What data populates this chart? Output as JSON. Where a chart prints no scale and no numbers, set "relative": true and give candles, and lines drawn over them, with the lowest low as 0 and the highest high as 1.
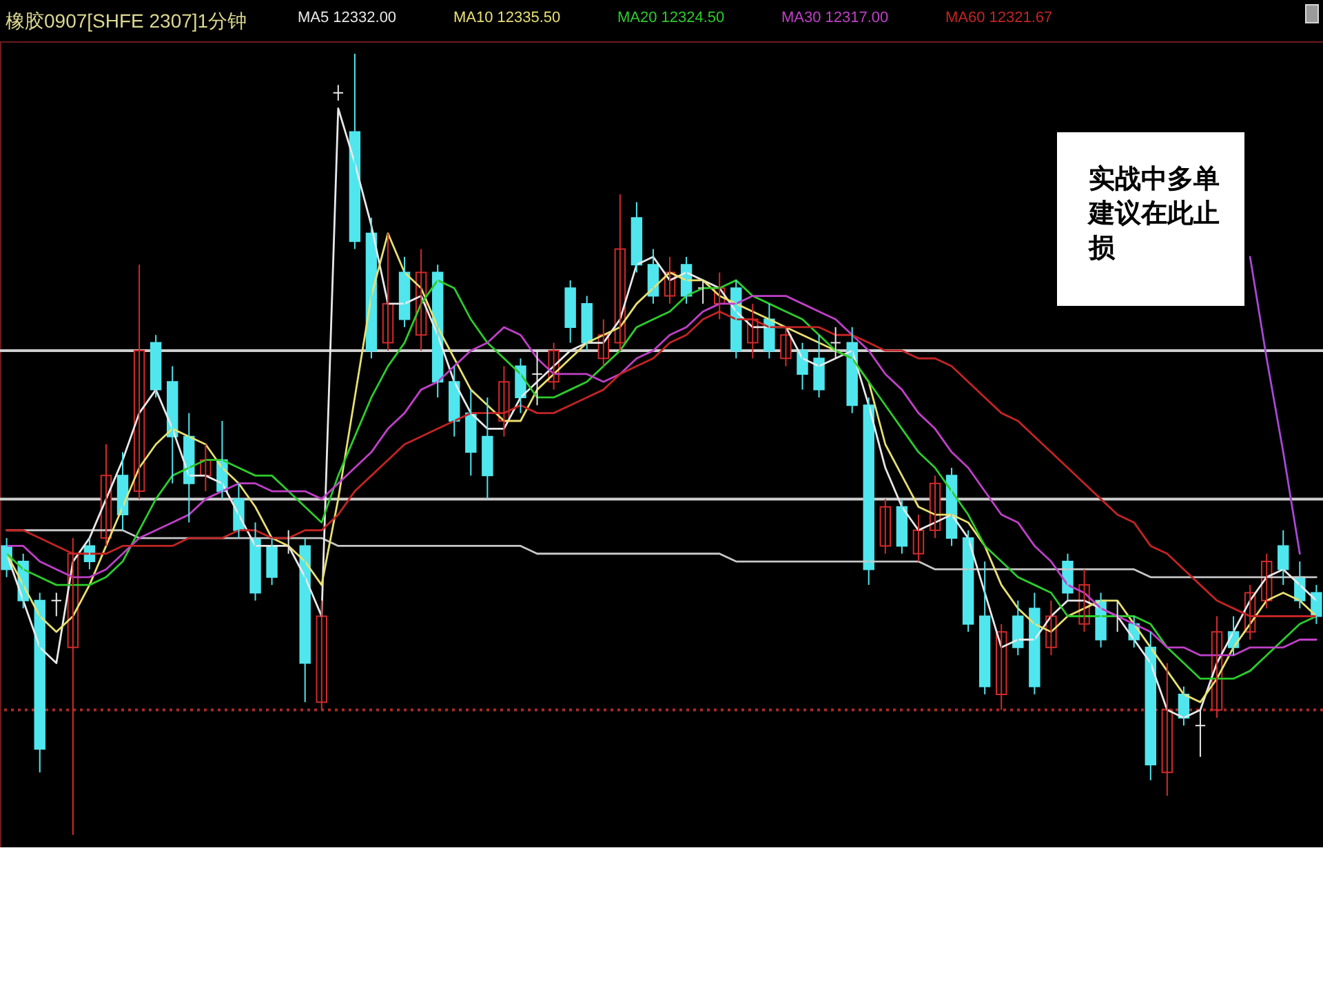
{
  "chart_data": {
    "type": "candlestick",
    "title": "橡胶0907[SHFE 2307]1分钟",
    "relative": true,
    "legend": "top",
    "categories": [
      null,
      null,
      null,
      null,
      null,
      null,
      null,
      null,
      null,
      null,
      null,
      null,
      null,
      null,
      null,
      null,
      null,
      null,
      null,
      null,
      null,
      null,
      null,
      null,
      null,
      null,
      null,
      null,
      null,
      null,
      null,
      null,
      null,
      null,
      null,
      null,
      null,
      null,
      null,
      null,
      null,
      null,
      null,
      null,
      null,
      null,
      null,
      null,
      null,
      null,
      null,
      null,
      null,
      null,
      null,
      null,
      null,
      null,
      null,
      null,
      null,
      null,
      null,
      null,
      null,
      null,
      null,
      null,
      null,
      null,
      null,
      null,
      null,
      null,
      null,
      null,
      null,
      null,
      null,
      null
    ],
    "ohlc": [
      [
        0.37,
        0.38,
        0.33,
        0.34
      ],
      [
        0.35,
        0.36,
        0.29,
        0.3
      ],
      [
        0.3,
        0.31,
        0.08,
        0.11
      ],
      [
        0.3,
        0.31,
        0.28,
        0.3
      ],
      [
        0.24,
        0.38,
        0,
        0.36
      ],
      [
        0.37,
        0.38,
        0.34,
        0.35
      ],
      [
        0.38,
        0.5,
        0.37,
        0.46
      ],
      [
        0.46,
        0.49,
        0.39,
        0.41
      ],
      [
        0.44,
        0.73,
        0.43,
        0.62
      ],
      [
        0.63,
        0.64,
        0.56,
        0.57
      ],
      [
        0.58,
        0.6,
        0.45,
        0.51
      ],
      [
        0.51,
        0.54,
        0.4,
        0.45
      ],
      [
        0.46,
        0.5,
        0.44,
        0.48
      ],
      [
        0.48,
        0.53,
        0.43,
        0.44
      ],
      [
        0.43,
        0.45,
        0.38,
        0.39
      ],
      [
        0.38,
        0.4,
        0.3,
        0.31
      ],
      [
        0.37,
        0.38,
        0.32,
        0.33
      ],
      [
        0.38,
        0.39,
        0.36,
        0.38
      ],
      [
        0.37,
        0.38,
        0.17,
        0.22
      ],
      [
        0.17,
        0.3,
        0.16,
        0.28
      ],
      [
        0.95,
        0.96,
        0.94,
        0.95
      ],
      [
        0.9,
        1,
        0.75,
        0.76
      ],
      [
        0.77,
        0.79,
        0.61,
        0.62
      ],
      [
        0.63,
        0.77,
        0.62,
        0.68
      ],
      [
        0.72,
        0.74,
        0.65,
        0.66
      ],
      [
        0.64,
        0.75,
        0.62,
        0.72
      ],
      [
        0.72,
        0.73,
        0.56,
        0.58
      ],
      [
        0.58,
        0.6,
        0.51,
        0.53
      ],
      [
        0.54,
        0.57,
        0.46,
        0.49
      ],
      [
        0.51,
        0.56,
        0.43,
        0.46
      ],
      [
        0.53,
        0.6,
        0.51,
        0.58
      ],
      [
        0.6,
        0.61,
        0.54,
        0.56
      ],
      [
        0.59,
        0.62,
        0.55,
        0.59
      ],
      [
        0.58,
        0.63,
        0.57,
        0.62
      ],
      [
        0.7,
        0.71,
        0.63,
        0.65
      ],
      [
        0.68,
        0.69,
        0.62,
        0.63
      ],
      [
        0.61,
        0.66,
        0.6,
        0.64
      ],
      [
        0.63,
        0.82,
        0.62,
        0.75
      ],
      [
        0.79,
        0.81,
        0.72,
        0.73
      ],
      [
        0.73,
        0.75,
        0.68,
        0.69
      ],
      [
        0.69,
        0.74,
        0.68,
        0.72
      ],
      [
        0.73,
        0.74,
        0.68,
        0.69
      ],
      [
        0.7,
        0.71,
        0.68,
        0.7
      ],
      [
        0.68,
        0.72,
        0.66,
        0.7
      ],
      [
        0.7,
        0.71,
        0.61,
        0.62
      ],
      [
        0.63,
        0.68,
        0.61,
        0.66
      ],
      [
        0.66,
        0.68,
        0.61,
        0.62
      ],
      [
        0.61,
        0.65,
        0.6,
        0.64
      ],
      [
        0.62,
        0.63,
        0.57,
        0.59
      ],
      [
        0.61,
        0.64,
        0.56,
        0.57
      ],
      [
        0.63,
        0.65,
        0.61,
        0.63
      ],
      [
        0.63,
        0.65,
        0.54,
        0.55
      ],
      [
        0.55,
        0.56,
        0.32,
        0.34
      ],
      [
        0.37,
        0.43,
        0.36,
        0.42
      ],
      [
        0.42,
        0.43,
        0.36,
        0.37
      ],
      [
        0.36,
        0.41,
        0.35,
        0.39
      ],
      [
        0.39,
        0.46,
        0.38,
        0.45
      ],
      [
        0.46,
        0.47,
        0.37,
        0.38
      ],
      [
        0.38,
        0.39,
        0.26,
        0.27
      ],
      [
        0.28,
        0.35,
        0.18,
        0.19
      ],
      [
        0.18,
        0.27,
        0.16,
        0.26
      ],
      [
        0.28,
        0.3,
        0.23,
        0.24
      ],
      [
        0.29,
        0.31,
        0.18,
        0.19
      ],
      [
        0.24,
        0.3,
        0.23,
        0.28
      ],
      [
        0.35,
        0.36,
        0.3,
        0.31
      ],
      [
        0.27,
        0.34,
        0.26,
        0.32
      ],
      [
        0.3,
        0.31,
        0.24,
        0.25
      ],
      [
        0.28,
        0.3,
        0.26,
        0.28
      ],
      [
        0.27,
        0.28,
        0.24,
        0.25
      ],
      [
        0.24,
        0.26,
        0.07,
        0.09
      ],
      [
        0.08,
        0.22,
        0.05,
        0.16
      ],
      [
        0.18,
        0.19,
        0.14,
        0.15
      ],
      [
        0.14,
        0.16,
        0.1,
        0.14
      ],
      [
        0.16,
        0.28,
        0.15,
        0.26
      ],
      [
        0.26,
        0.28,
        0.23,
        0.24
      ],
      [
        0.26,
        0.32,
        0.25,
        0.31
      ],
      [
        0.3,
        0.36,
        0.29,
        0.35
      ],
      [
        0.37,
        0.39,
        0.32,
        0.34
      ],
      [
        0.33,
        0.35,
        0.29,
        0.3
      ],
      [
        0.31,
        0.32,
        0.27,
        0.28
      ]
    ],
    "colors": [
      "#50e6ee",
      "#50e6ee",
      "#50e6ee",
      "#e8e8e8",
      "#d42a2a",
      "#50e6ee",
      "#d42a2a",
      "#50e6ee",
      "#d42a2a",
      "#50e6ee",
      "#50e6ee",
      "#50e6ee",
      "#d42a2a",
      "#50e6ee",
      "#50e6ee",
      "#50e6ee",
      "#50e6ee",
      "#e8e8e8",
      "#50e6ee",
      "#d42a2a",
      "#e8e8e8",
      "#50e6ee",
      "#50e6ee",
      "#d42a2a",
      "#50e6ee",
      "#d42a2a",
      "#50e6ee",
      "#50e6ee",
      "#50e6ee",
      "#50e6ee",
      "#d42a2a",
      "#50e6ee",
      "#e8e8e8",
      "#d42a2a",
      "#50e6ee",
      "#50e6ee",
      "#d42a2a",
      "#d42a2a",
      "#50e6ee",
      "#50e6ee",
      "#d42a2a",
      "#50e6ee",
      "#e8e8e8",
      "#d42a2a",
      "#50e6ee",
      "#d42a2a",
      "#50e6ee",
      "#d42a2a",
      "#50e6ee",
      "#50e6ee",
      "#e8e8e8",
      "#50e6ee",
      "#50e6ee",
      "#d42a2a",
      "#50e6ee",
      "#d42a2a",
      "#d42a2a",
      "#50e6ee",
      "#50e6ee",
      "#50e6ee",
      "#d42a2a",
      "#50e6ee",
      "#50e6ee",
      "#d42a2a",
      "#50e6ee",
      "#d42a2a",
      "#50e6ee",
      "#e8e8e8",
      "#50e6ee",
      "#50e6ee",
      "#d42a2a",
      "#50e6ee",
      "#e8e8e8",
      "#d42a2a",
      "#50e6ee",
      "#d42a2a",
      "#d42a2a",
      "#50e6ee",
      "#50e6ee",
      "#50e6ee"
    ],
    "series": [
      {
        "type": "line",
        "name": "MA5 12332.00",
        "color": "#e8e8e8",
        "values": [
          0.36,
          0.3,
          0.24,
          0.22,
          0.35,
          0.38,
          0.43,
          0.48,
          0.54,
          0.57,
          0.52,
          0.46,
          0.46,
          0.45,
          0.41,
          0.37,
          0.37,
          0.37,
          0.33,
          0.28,
          0.93,
          0.86,
          0.78,
          0.68,
          0.68,
          0.69,
          0.64,
          0.58,
          0.54,
          0.52,
          0.52,
          0.56,
          0.58,
          0.6,
          0.62,
          0.63,
          0.63,
          0.66,
          0.73,
          0.74,
          0.71,
          0.72,
          0.71,
          0.7,
          0.67,
          0.65,
          0.65,
          0.65,
          0.61,
          0.6,
          0.61,
          0.62,
          0.55,
          0.47,
          0.42,
          0.39,
          0.4,
          0.41,
          0.38,
          0.31,
          0.24,
          0.25,
          0.25,
          0.28,
          0.3,
          0.3,
          0.29,
          0.28,
          0.25,
          0.22,
          0.16,
          0.15,
          0.16,
          0.22,
          0.26,
          0.3,
          0.33,
          0.34,
          0.32,
          0.3
        ]
      },
      {
        "type": "line",
        "name": "MA10 12335.50",
        "color": "#e8e070",
        "values": [
          0.36,
          0.32,
          0.28,
          0.26,
          0.28,
          0.32,
          0.37,
          0.42,
          0.47,
          0.5,
          0.52,
          0.51,
          0.5,
          0.47,
          0.45,
          0.42,
          0.38,
          0.37,
          0.35,
          0.32,
          0.43,
          0.56,
          0.69,
          0.77,
          0.72,
          0.7,
          0.65,
          0.61,
          0.57,
          0.55,
          0.53,
          0.53,
          0.57,
          0.59,
          0.61,
          0.63,
          0.64,
          0.65,
          0.68,
          0.7,
          0.72,
          0.71,
          0.71,
          0.69,
          0.68,
          0.67,
          0.66,
          0.65,
          0.64,
          0.63,
          0.62,
          0.61,
          0.58,
          0.5,
          0.46,
          0.42,
          0.41,
          0.41,
          0.4,
          0.37,
          0.32,
          0.29,
          0.27,
          0.26,
          0.28,
          0.29,
          0.3,
          0.3,
          0.27,
          0.24,
          0.21,
          0.18,
          0.17,
          0.2,
          0.24,
          0.27,
          0.3,
          0.31,
          0.3,
          0.28
        ]
      },
      {
        "type": "line",
        "name": "MA20 12324.50",
        "color": "#2ccc2c",
        "values": [
          0.36,
          0.34,
          0.33,
          0.32,
          0.32,
          0.32,
          0.33,
          0.35,
          0.39,
          0.43,
          0.46,
          0.47,
          0.48,
          0.48,
          0.47,
          0.46,
          0.46,
          0.44,
          0.42,
          0.4,
          0.46,
          0.51,
          0.56,
          0.6,
          0.63,
          0.68,
          0.71,
          0.7,
          0.66,
          0.63,
          0.61,
          0.59,
          0.56,
          0.56,
          0.57,
          0.58,
          0.6,
          0.62,
          0.65,
          0.66,
          0.67,
          0.69,
          0.7,
          0.7,
          0.71,
          0.69,
          0.68,
          0.67,
          0.66,
          0.64,
          0.62,
          0.61,
          0.58,
          0.55,
          0.52,
          0.49,
          0.47,
          0.44,
          0.41,
          0.37,
          0.35,
          0.33,
          0.32,
          0.31,
          0.28,
          0.28,
          0.28,
          0.28,
          0.28,
          0.27,
          0.24,
          0.22,
          0.2,
          0.2,
          0.2,
          0.21,
          0.23,
          0.25,
          0.27,
          0.28
        ]
      },
      {
        "type": "line",
        "name": "MA30 12317.00",
        "color": "#c040c8",
        "values": [
          0.37,
          0.37,
          0.35,
          0.34,
          0.33,
          0.33,
          0.34,
          0.36,
          0.38,
          0.39,
          0.4,
          0.41,
          0.43,
          0.44,
          0.45,
          0.45,
          0.44,
          0.44,
          0.44,
          0.43,
          0.45,
          0.47,
          0.49,
          0.52,
          0.54,
          0.57,
          0.58,
          0.6,
          0.62,
          0.63,
          0.65,
          0.64,
          0.61,
          0.59,
          0.59,
          0.59,
          0.58,
          0.59,
          0.61,
          0.62,
          0.64,
          0.65,
          0.67,
          0.68,
          0.68,
          0.69,
          0.69,
          0.69,
          0.68,
          0.67,
          0.66,
          0.64,
          0.62,
          0.59,
          0.57,
          0.54,
          0.52,
          0.49,
          0.47,
          0.44,
          0.41,
          0.4,
          0.37,
          0.35,
          0.32,
          0.31,
          0.29,
          0.28,
          0.27,
          0.26,
          0.24,
          0.24,
          0.23,
          0.23,
          0.23,
          0.24,
          0.24,
          0.24,
          0.25,
          0.25
        ]
      },
      {
        "type": "line",
        "name": "MA60 12321.67",
        "color": "#c42424",
        "values": [
          0.39,
          0.39,
          0.38,
          0.37,
          0.36,
          0.36,
          0.36,
          0.37,
          0.37,
          0.37,
          0.37,
          0.38,
          0.38,
          0.38,
          0.39,
          0.39,
          0.38,
          0.38,
          0.39,
          0.39,
          0.41,
          0.44,
          0.46,
          0.48,
          0.5,
          0.51,
          0.52,
          0.53,
          0.54,
          0.54,
          0.54,
          0.55,
          0.54,
          0.54,
          0.55,
          0.56,
          0.57,
          0.59,
          0.6,
          0.61,
          0.63,
          0.64,
          0.66,
          0.67,
          0.66,
          0.66,
          0.65,
          0.65,
          0.65,
          0.65,
          0.64,
          0.64,
          0.63,
          0.62,
          0.62,
          0.61,
          0.61,
          0.6,
          0.58,
          0.56,
          0.54,
          0.53,
          0.51,
          0.49,
          0.47,
          0.45,
          0.43,
          0.41,
          0.4,
          0.37,
          0.36,
          0.34,
          0.32,
          0.3,
          0.29,
          0.28,
          0.28,
          0.28,
          0.28,
          0.28
        ]
      },
      {
        "type": "line",
        "color": "#c8c8c8",
        "values": [
          0.39,
          0.39,
          0.39,
          0.39,
          0.39,
          0.39,
          0.39,
          0.39,
          0.38,
          0.38,
          0.38,
          0.38,
          0.38,
          0.38,
          0.38,
          0.38,
          0.38,
          0.38,
          0.38,
          0.38,
          0.37,
          0.37,
          0.37,
          0.37,
          0.37,
          0.37,
          0.37,
          0.37,
          0.37,
          0.37,
          0.37,
          0.37,
          0.36,
          0.36,
          0.36,
          0.36,
          0.36,
          0.36,
          0.36,
          0.36,
          0.36,
          0.36,
          0.36,
          0.36,
          0.35,
          0.35,
          0.35,
          0.35,
          0.35,
          0.35,
          0.35,
          0.35,
          0.35,
          0.35,
          0.35,
          0.35,
          0.34,
          0.34,
          0.34,
          0.34,
          0.34,
          0.34,
          0.34,
          0.34,
          0.34,
          0.34,
          0.34,
          0.34,
          0.34,
          0.33,
          0.33,
          0.33,
          0.33,
          0.33,
          0.33,
          0.33,
          0.33,
          0.33,
          0.33,
          0.33
        ]
      },
      {
        "type": "line",
        "color": "#a848d8",
        "values": [
          null,
          null,
          null,
          null,
          null,
          null,
          null,
          null,
          null,
          null,
          null,
          null,
          null,
          null,
          null,
          null,
          null,
          null,
          null,
          null,
          null,
          null,
          null,
          null,
          null,
          null,
          null,
          null,
          null,
          null,
          null,
          null,
          null,
          null,
          null,
          null,
          null,
          null,
          null,
          null,
          null,
          null,
          null,
          null,
          null,
          null,
          null,
          null,
          null,
          null,
          null,
          null,
          null,
          null,
          null,
          null,
          null,
          null,
          null,
          null,
          null,
          null,
          null,
          null,
          null,
          null,
          null,
          null,
          null,
          null,
          null,
          null,
          null,
          null,
          null,
          0.74,
          0.61,
          0.49,
          0.36,
          null
        ]
      }
    ],
    "ref_lines": [
      {
        "axis": "y",
        "value": 0.62,
        "color": "#cfcfcf"
      },
      {
        "axis": "y",
        "value": 0.43,
        "color": "#cfcfcf"
      },
      {
        "axis": "y",
        "value": 0.16,
        "color": "#b02828",
        "line_style": "dotted"
      }
    ],
    "annotations": [
      "实战中多单建议在此止损"
    ]
  }
}
